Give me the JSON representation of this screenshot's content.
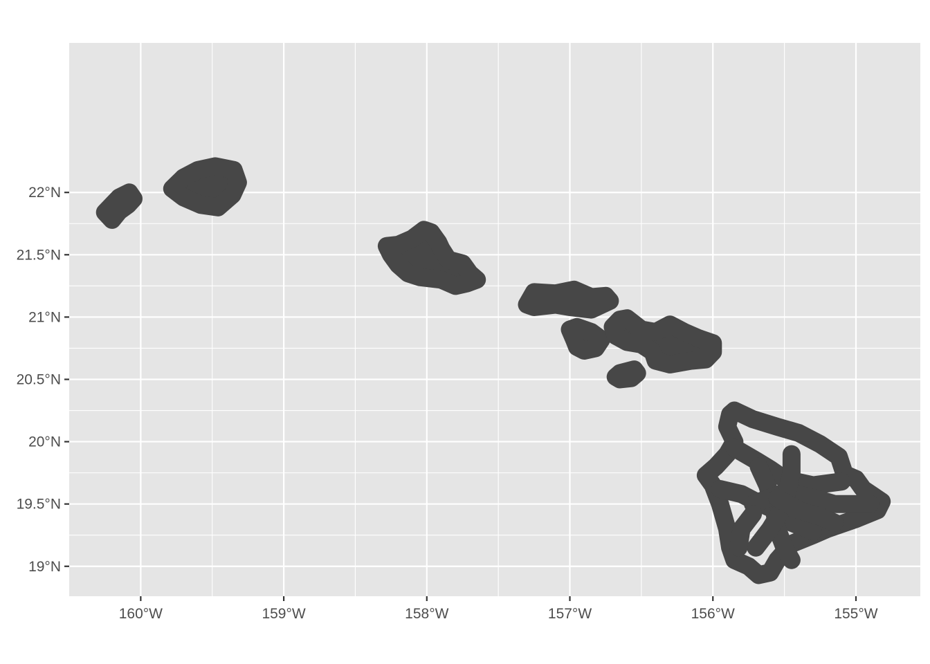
{
  "chart_data": {
    "type": "map",
    "title": "",
    "xlabel": "",
    "ylabel": "",
    "xlim": [
      -160.5,
      -154.55
    ],
    "ylim": [
      18.76,
      23.2
    ],
    "grid": true,
    "panel_color": "#e5e5e5",
    "grid_color": "#ffffff",
    "land_color": "#474747",
    "x_ticks": [
      {
        "value": -160,
        "label": "160°W"
      },
      {
        "value": -159,
        "label": "159°W"
      },
      {
        "value": -158,
        "label": "158°W"
      },
      {
        "value": -157,
        "label": "157°W"
      },
      {
        "value": -156,
        "label": "156°W"
      },
      {
        "value": -155,
        "label": "155°W"
      }
    ],
    "y_ticks": [
      {
        "value": 22,
        "label": "22°N"
      },
      {
        "value": 21.5,
        "label": "21.5°N"
      },
      {
        "value": 21,
        "label": "21°N"
      },
      {
        "value": 20.5,
        "label": "20.5°N"
      },
      {
        "value": 20,
        "label": "20°N"
      },
      {
        "value": 19.5,
        "label": "19.5°N"
      },
      {
        "value": 19,
        "label": "19°N"
      }
    ],
    "features": [
      {
        "name": "Niihau",
        "paths": [
          [
            [
              -160.2,
              21.78
            ],
            [
              -160.25,
              21.84
            ],
            [
              -160.2,
              21.9
            ],
            [
              -160.15,
              21.96
            ],
            [
              -160.08,
              22.0
            ],
            [
              -160.05,
              21.95
            ],
            [
              -160.09,
              21.9
            ],
            [
              -160.15,
              21.85
            ],
            [
              -160.2,
              21.78
            ]
          ]
        ]
      },
      {
        "name": "Kauai",
        "paths": [
          [
            [
              -159.78,
              22.03
            ],
            [
              -159.7,
              22.12
            ],
            [
              -159.6,
              22.18
            ],
            [
              -159.48,
              22.21
            ],
            [
              -159.35,
              22.18
            ],
            [
              -159.32,
              22.08
            ],
            [
              -159.36,
              21.98
            ],
            [
              -159.46,
              21.88
            ],
            [
              -159.58,
              21.9
            ],
            [
              -159.7,
              21.96
            ],
            [
              -159.78,
              22.03
            ]
          ]
        ]
      },
      {
        "name": "Oahu",
        "paths": [
          [
            [
              -158.28,
              21.57
            ],
            [
              -158.2,
              21.58
            ],
            [
              -158.1,
              21.63
            ],
            [
              -158.02,
              21.7
            ],
            [
              -157.97,
              21.68
            ],
            [
              -157.92,
              21.6
            ],
            [
              -157.9,
              21.55
            ],
            [
              -157.85,
              21.46
            ],
            [
              -157.75,
              21.43
            ],
            [
              -157.7,
              21.35
            ],
            [
              -157.65,
              21.3
            ],
            [
              -157.72,
              21.27
            ],
            [
              -157.8,
              21.25
            ],
            [
              -157.9,
              21.3
            ],
            [
              -158.05,
              21.32
            ],
            [
              -158.13,
              21.35
            ],
            [
              -158.2,
              21.42
            ],
            [
              -158.25,
              21.5
            ],
            [
              -158.28,
              21.57
            ]
          ]
        ]
      },
      {
        "name": "Molokai",
        "paths": [
          [
            [
              -157.3,
              21.1
            ],
            [
              -157.25,
              21.2
            ],
            [
              -157.1,
              21.19
            ],
            [
              -156.97,
              21.22
            ],
            [
              -156.85,
              21.16
            ],
            [
              -156.75,
              21.17
            ],
            [
              -156.72,
              21.13
            ],
            [
              -156.85,
              21.06
            ],
            [
              -157.0,
              21.08
            ],
            [
              -157.1,
              21.1
            ],
            [
              -157.25,
              21.08
            ],
            [
              -157.3,
              21.1
            ]
          ]
        ]
      },
      {
        "name": "Lanai",
        "paths": [
          [
            [
              -157.0,
              20.9
            ],
            [
              -156.95,
              20.92
            ],
            [
              -156.85,
              20.88
            ],
            [
              -156.78,
              20.82
            ],
            [
              -156.82,
              20.75
            ],
            [
              -156.9,
              20.73
            ],
            [
              -156.95,
              20.76
            ],
            [
              -156.97,
              20.82
            ],
            [
              -157.0,
              20.9
            ]
          ]
        ]
      },
      {
        "name": "Maui",
        "paths": [
          [
            [
              -156.65,
              20.98
            ],
            [
              -156.7,
              20.92
            ],
            [
              -156.68,
              20.85
            ],
            [
              -156.6,
              20.8
            ],
            [
              -156.5,
              20.78
            ],
            [
              -156.42,
              20.72
            ],
            [
              -156.4,
              20.65
            ],
            [
              -156.3,
              20.62
            ],
            [
              -156.15,
              20.65
            ],
            [
              -156.05,
              20.66
            ],
            [
              -156.0,
              20.72
            ],
            [
              -156.0,
              20.79
            ],
            [
              -156.1,
              20.83
            ],
            [
              -156.2,
              20.88
            ],
            [
              -156.3,
              20.94
            ],
            [
              -156.4,
              20.88
            ],
            [
              -156.5,
              20.9
            ],
            [
              -156.6,
              20.99
            ],
            [
              -156.65,
              20.98
            ]
          ]
        ]
      },
      {
        "name": "Kahoolawe",
        "paths": [
          [
            [
              -156.68,
              20.52
            ],
            [
              -156.65,
              20.55
            ],
            [
              -156.55,
              20.58
            ],
            [
              -156.53,
              20.55
            ],
            [
              -156.57,
              20.51
            ],
            [
              -156.65,
              20.5
            ],
            [
              -156.68,
              20.52
            ]
          ]
        ]
      },
      {
        "name": "Hawaii",
        "paths": [
          [
            [
              -155.88,
              20.22
            ],
            [
              -155.85,
              20.25
            ],
            [
              -155.72,
              20.18
            ],
            [
              -155.55,
              20.12
            ],
            [
              -155.4,
              20.07
            ],
            [
              -155.25,
              19.98
            ],
            [
              -155.12,
              19.88
            ],
            [
              -155.08,
              19.74
            ],
            [
              -155.0,
              19.7
            ],
            [
              -154.95,
              19.62
            ],
            [
              -154.82,
              19.52
            ],
            [
              -154.85,
              19.45
            ],
            [
              -155.0,
              19.38
            ],
            [
              -155.2,
              19.3
            ],
            [
              -155.3,
              19.25
            ],
            [
              -155.45,
              19.18
            ],
            [
              -155.55,
              19.05
            ],
            [
              -155.6,
              18.95
            ],
            [
              -155.68,
              18.93
            ],
            [
              -155.75,
              19.0
            ],
            [
              -155.85,
              19.05
            ],
            [
              -155.88,
              19.15
            ],
            [
              -155.9,
              19.3
            ],
            [
              -155.95,
              19.5
            ],
            [
              -156.0,
              19.65
            ],
            [
              -156.05,
              19.73
            ],
            [
              -155.98,
              19.8
            ],
            [
              -155.9,
              19.9
            ],
            [
              -155.85,
              20.0
            ],
            [
              -155.9,
              20.12
            ],
            [
              -155.88,
              20.22
            ]
          ],
          [
            [
              -155.85,
              19.95
            ],
            [
              -155.7,
              19.85
            ],
            [
              -155.6,
              19.78
            ],
            [
              -155.5,
              19.7
            ],
            [
              -155.3,
              19.65
            ],
            [
              -155.1,
              19.68
            ]
          ],
          [
            [
              -155.95,
              19.62
            ],
            [
              -155.8,
              19.58
            ],
            [
              -155.7,
              19.52
            ],
            [
              -155.58,
              19.46
            ],
            [
              -155.45,
              19.35
            ],
            [
              -155.3,
              19.28
            ]
          ],
          [
            [
              -155.68,
              19.8
            ],
            [
              -155.62,
              19.65
            ],
            [
              -155.58,
              19.5
            ],
            [
              -155.55,
              19.3
            ],
            [
              -155.5,
              19.15
            ],
            [
              -155.45,
              19.05
            ]
          ],
          [
            [
              -155.72,
              19.5
            ],
            [
              -155.6,
              19.55
            ],
            [
              -155.48,
              19.6
            ],
            [
              -155.3,
              19.55
            ],
            [
              -155.15,
              19.5
            ],
            [
              -154.9,
              19.5
            ]
          ],
          [
            [
              -155.45,
              19.9
            ],
            [
              -155.45,
              19.75
            ],
            [
              -155.48,
              19.6
            ],
            [
              -155.52,
              19.45
            ],
            [
              -155.6,
              19.3
            ],
            [
              -155.7,
              19.15
            ]
          ],
          [
            [
              -155.72,
              19.42
            ],
            [
              -155.8,
              19.3
            ],
            [
              -155.82,
              19.15
            ]
          ],
          [
            [
              -155.55,
              19.55
            ],
            [
              -155.4,
              19.45
            ],
            [
              -155.25,
              19.4
            ],
            [
              -155.15,
              19.35
            ]
          ]
        ]
      }
    ]
  }
}
